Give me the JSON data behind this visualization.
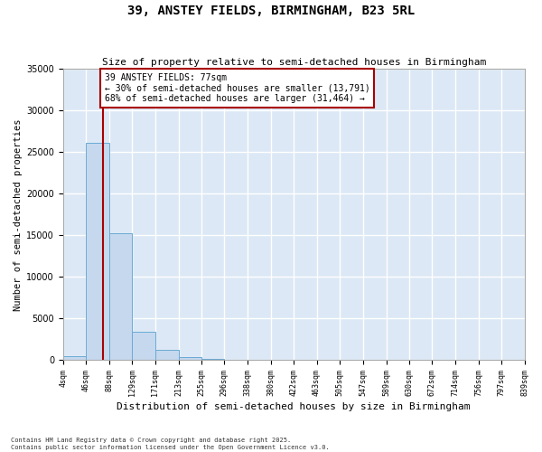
{
  "title": "39, ANSTEY FIELDS, BIRMINGHAM, B23 5RL",
  "subtitle": "Size of property relative to semi-detached houses in Birmingham",
  "xlabel": "Distribution of semi-detached houses by size in Birmingham",
  "ylabel": "Number of semi-detached properties",
  "bar_color": "#c5d8ee",
  "bar_edge_color": "#6aaad4",
  "background_color": "#dce8f5",
  "grid_color": "#ffffff",
  "bin_edges": [
    4,
    46,
    88,
    129,
    171,
    213,
    255,
    296,
    338,
    380,
    422,
    463,
    505,
    547,
    589,
    630,
    672,
    714,
    756,
    797,
    839
  ],
  "bar_heights": [
    500,
    26100,
    15200,
    3400,
    1200,
    400,
    150,
    80,
    50,
    30,
    20,
    15,
    10,
    8,
    5,
    4,
    3,
    2,
    2,
    1
  ],
  "property_size": 77,
  "property_label": "39 ANSTEY FIELDS: 77sqm",
  "smaller_pct": 30,
  "smaller_count": 13791,
  "larger_pct": 68,
  "larger_count": 31464,
  "red_line_color": "#aa0000",
  "annotation_box_color": "#aa0000",
  "ylim": [
    0,
    35000
  ],
  "yticks": [
    0,
    5000,
    10000,
    15000,
    20000,
    25000,
    30000,
    35000
  ],
  "footer_line1": "Contains HM Land Registry data © Crown copyright and database right 2025.",
  "footer_line2": "Contains public sector information licensed under the Open Government Licence v3.0."
}
